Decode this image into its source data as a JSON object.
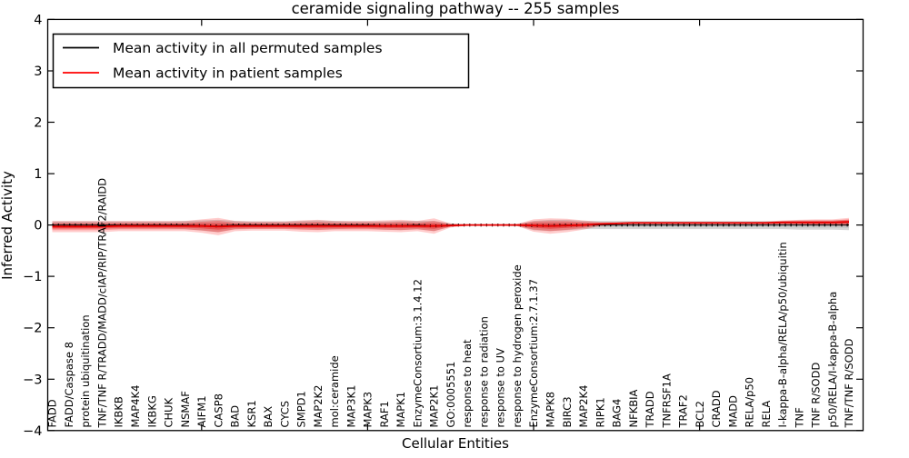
{
  "title": "ceramide signaling pathway -- 255 samples",
  "xlabel": "Cellular Entities",
  "ylabel": "Inferred Activity",
  "legend": [
    {
      "label": "Mean activity in all permuted samples",
      "color": "#000000"
    },
    {
      "label": "Mean activity in patient samples",
      "color": "#ff0000"
    }
  ],
  "chart_data": {
    "type": "line",
    "title": "ceramide signaling pathway -- 255 samples",
    "xlabel": "Cellular Entities",
    "ylabel": "Inferred Activity",
    "ylim": [
      -4,
      4
    ],
    "yticks": [
      4,
      3,
      2,
      1,
      0,
      -1,
      -2,
      -3,
      -4
    ],
    "grid": false,
    "legend_position": "upper left",
    "categories": [
      "FADD",
      "FADD/Caspase 8",
      "protein ubiquitination",
      "TNF/TNF R/TRADD/MADD/cIAP/RIP/TRAF2/RAIDD",
      "IKBKB",
      "MAP4K4",
      "IKBKG",
      "CHUK",
      "NSMAF",
      "AIFM1",
      "CASP8",
      "BAD",
      "KSR1",
      "BAX",
      "CYCS",
      "SMPD1",
      "MAP2K2",
      "mol:ceramide",
      "MAP3K1",
      "MAPK3",
      "RAF1",
      "MAPK1",
      "EnzymeConsortium:3.1.4.12",
      "MAP2K1",
      "GO:0005551",
      "response to heat",
      "response to radiation",
      "response to UV",
      "response to hydrogen peroxide",
      "EnzymeConsortium:2.7.1.37",
      "MAPK8",
      "BIRC3",
      "MAP2K4",
      "RIPK1",
      "BAG4",
      "NFKBIA",
      "TRADD",
      "TNFRSF1A",
      "TRAF2",
      "BCL2",
      "CRADD",
      "MADD",
      "RELA/p50",
      "RELA",
      "I-kappa-B-alpha/RELA/p50/ubiquitin",
      "TNF",
      "TNF R/SODD",
      "p50/RELA/I-kappa-B-alpha",
      "TNF/TNF R/SODD"
    ],
    "series": [
      {
        "name": "Mean activity in all permuted samples",
        "color": "#000000",
        "style": "dotted-markers",
        "values": [
          0,
          0,
          0,
          0,
          0,
          0,
          0,
          0,
          0,
          -0.01,
          -0.02,
          0,
          0,
          0,
          0,
          0,
          0,
          0,
          0,
          0,
          -0.01,
          -0.01,
          0,
          -0.02,
          0,
          0,
          0,
          0,
          0,
          -0.01,
          -0.01,
          0,
          0,
          0,
          0,
          0,
          0,
          0,
          0,
          0,
          0,
          0,
          0,
          0,
          0,
          0,
          0,
          0,
          0
        ],
        "band_halfwidth": [
          0.07,
          0.07,
          0.07,
          0.07,
          0.07,
          0.07,
          0.07,
          0.07,
          0.08,
          0.1,
          0.12,
          0.08,
          0.07,
          0.07,
          0.07,
          0.08,
          0.09,
          0.08,
          0.07,
          0.07,
          0.08,
          0.09,
          0.08,
          0.1,
          0.03,
          0.015,
          0.015,
          0.015,
          0.02,
          0.09,
          0.11,
          0.1,
          0.08,
          0.08,
          0.08,
          0.08,
          0.08,
          0.08,
          0.08,
          0.08,
          0.08,
          0.08,
          0.08,
          0.08,
          0.08,
          0.09,
          0.09,
          0.09,
          0.1
        ]
      },
      {
        "name": "Mean activity in patient samples",
        "color": "#ff0000",
        "style": "solid",
        "values": [
          -0.03,
          -0.03,
          -0.03,
          -0.03,
          -0.02,
          -0.02,
          -0.02,
          -0.02,
          -0.02,
          -0.02,
          -0.03,
          -0.02,
          -0.02,
          -0.02,
          -0.02,
          -0.02,
          -0.02,
          -0.02,
          -0.02,
          -0.02,
          -0.02,
          -0.02,
          -0.02,
          -0.02,
          -0.01,
          0,
          0,
          0,
          0,
          -0.01,
          -0.02,
          -0.01,
          0,
          0.02,
          0.03,
          0.04,
          0.04,
          0.04,
          0.04,
          0.04,
          0.04,
          0.04,
          0.04,
          0.04,
          0.05,
          0.05,
          0.05,
          0.05,
          0.06
        ],
        "band_halfwidth": [
          0.11,
          0.11,
          0.11,
          0.11,
          0.1,
          0.1,
          0.1,
          0.1,
          0.1,
          0.13,
          0.17,
          0.1,
          0.09,
          0.09,
          0.09,
          0.11,
          0.12,
          0.1,
          0.1,
          0.1,
          0.11,
          0.12,
          0.1,
          0.15,
          0.04,
          0.015,
          0.015,
          0.015,
          0.02,
          0.12,
          0.15,
          0.13,
          0.09,
          0.04,
          0.025,
          0.02,
          0.02,
          0.02,
          0.02,
          0.02,
          0.02,
          0.02,
          0.02,
          0.025,
          0.04,
          0.05,
          0.06,
          0.06,
          0.08
        ]
      }
    ]
  }
}
